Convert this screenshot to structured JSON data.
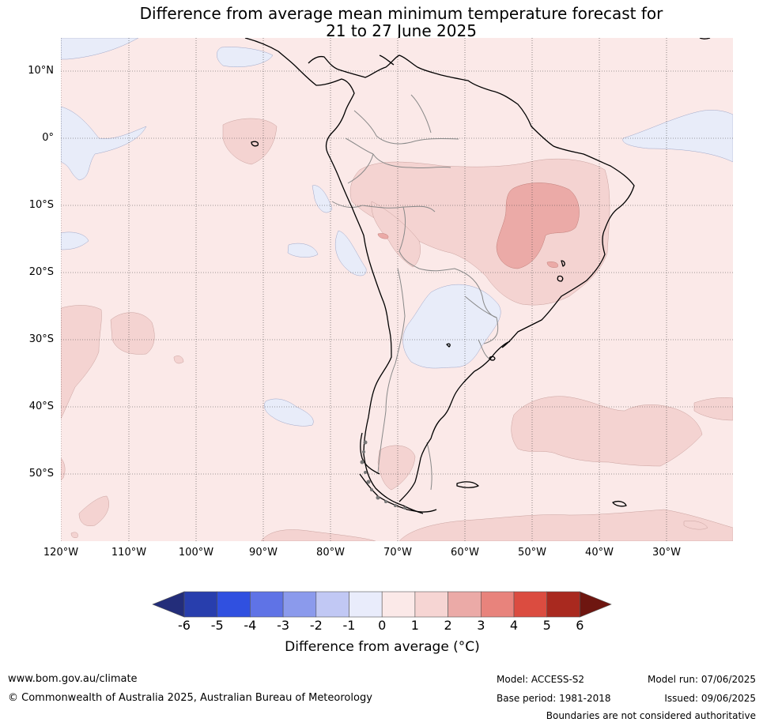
{
  "title": {
    "line1": "Difference from average mean minimum temperature forecast for",
    "line2": "21 to 27 June 2025"
  },
  "map": {
    "lat_labels": [
      "10°N",
      "0°",
      "10°S",
      "20°S",
      "30°S",
      "40°S",
      "50°S"
    ],
    "lon_labels": [
      "120°W",
      "110°W",
      "100°W",
      "90°W",
      "80°W",
      "70°W",
      "60°W",
      "50°W",
      "40°W",
      "30°W"
    ],
    "colors": {
      "ocean_background": "#fbe9e8",
      "anomaly_0_1": "#fbe9e8",
      "anomaly_1_2": "#f4d3d1",
      "anomaly_2_3": "#ebaaa7",
      "anomaly_m1_0": "#e8ecf9",
      "coastline": "#000000",
      "borders": "#888888"
    }
  },
  "colorbar": {
    "ticks": [
      "-6",
      "-5",
      "-4",
      "-3",
      "-2",
      "-1",
      "0",
      "1",
      "2",
      "3",
      "4",
      "5",
      "6"
    ],
    "colors": [
      "#232d7a",
      "#283ead",
      "#3050e0",
      "#5f73e6",
      "#8b9aec",
      "#c1c8f4",
      "#e9ecfb",
      "#fbe9e8",
      "#f6d5d3",
      "#ebaaa7",
      "#e8837c",
      "#db4c40",
      "#a9291f",
      "#6e1610"
    ],
    "label": "Difference from average (°C)"
  },
  "footer": {
    "website": "www.bom.gov.au/climate",
    "copyright": "© Commonwealth of Australia 2025, Australian Bureau of Meteorology",
    "model": "Model: ACCESS-S2",
    "base_period": "Base period: 1981-2018",
    "model_run": "Model run: 07/06/2025",
    "issued": "Issued: 09/06/2025",
    "disclaimer": "Boundaries are not considered authoritative"
  }
}
